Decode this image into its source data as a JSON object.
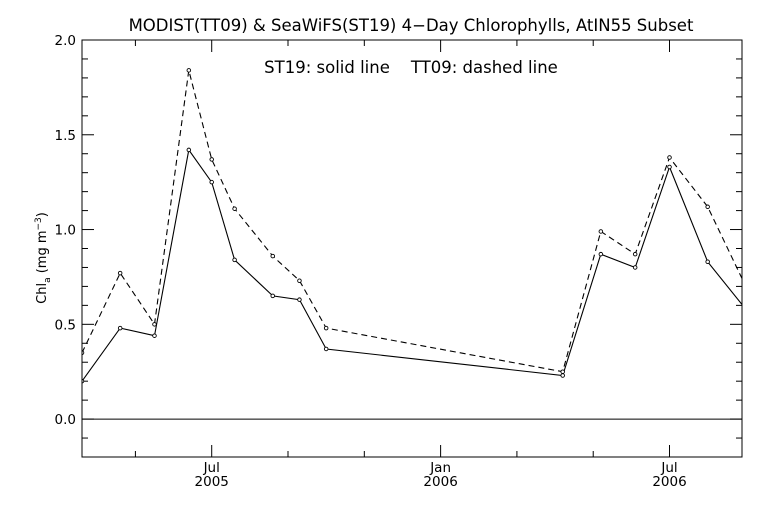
{
  "chart_data": {
    "type": "line",
    "title": "MODIST(TT09) & SeaWiFS(ST19) 4−Day Chlorophylls, AtIN55 Subset",
    "annotation": "ST19: solid line    TT09: dashed line",
    "ylabel_main": "Chl",
    "ylabel_sub": "a",
    "ylabel_units": " (mg m",
    "ylabel_exp": "−3",
    "ylabel_close": ")",
    "ylim": [
      -0.2,
      2.0
    ],
    "y_ticks": [
      {
        "value": 0.0,
        "label": "0.0"
      },
      {
        "value": 0.5,
        "label": "0.5"
      },
      {
        "value": 1.0,
        "label": "1.0"
      },
      {
        "value": 1.5,
        "label": "1.5"
      },
      {
        "value": 2.0,
        "label": "2.0"
      }
    ],
    "y_minor_step": 0.1,
    "x_domain_month": [
      2.6,
      19.9
    ],
    "x_major_ticks": [
      {
        "month": 6.0,
        "label": "Jul",
        "year_label": "2005"
      },
      {
        "month": 12.0,
        "label": "Jan",
        "year_label": "2006"
      },
      {
        "month": 18.0,
        "label": "Jul",
        "year_label": "2006"
      }
    ],
    "x_minor_ticks": [
      4.0,
      8.0,
      10.0,
      14.0,
      16.0
    ],
    "series": [
      {
        "name": "ST19",
        "style": "solid",
        "x_month": [
          2.6,
          3.6,
          4.5,
          5.4,
          6.0,
          6.6,
          7.6,
          8.3,
          9.0,
          15.2,
          16.2,
          17.1,
          18.0,
          19.0,
          20.0
        ],
        "y": [
          0.2,
          0.48,
          0.44,
          1.42,
          1.25,
          0.84,
          0.65,
          0.63,
          0.37,
          0.23,
          0.87,
          0.8,
          1.33,
          0.83,
          0.58
        ]
      },
      {
        "name": "TT09",
        "style": "dashed",
        "x_month": [
          2.6,
          3.6,
          4.5,
          5.4,
          6.0,
          6.6,
          7.6,
          8.3,
          9.0,
          15.2,
          16.2,
          17.1,
          18.0,
          19.0,
          20.0
        ],
        "y": [
          0.35,
          0.77,
          0.5,
          1.84,
          1.37,
          1.11,
          0.86,
          0.73,
          0.48,
          0.25,
          0.99,
          0.87,
          1.38,
          1.12,
          0.7
        ]
      }
    ],
    "reference_line": {
      "y": 0.0
    },
    "colors": {
      "line": "#000000",
      "background": "#ffffff"
    }
  }
}
